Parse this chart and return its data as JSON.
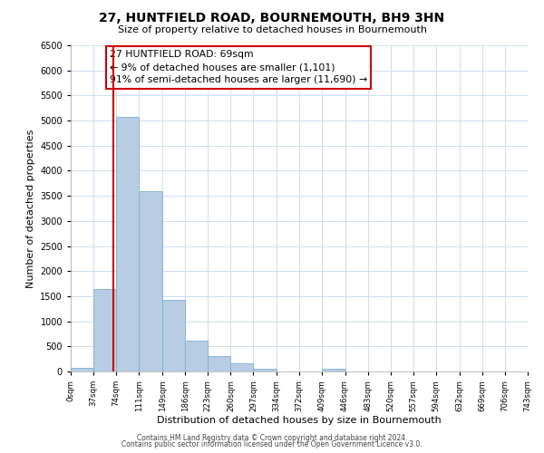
{
  "title": "27, HUNTFIELD ROAD, BOURNEMOUTH, BH9 3HN",
  "subtitle": "Size of property relative to detached houses in Bournemouth",
  "xlabel": "Distribution of detached houses by size in Bournemouth",
  "ylabel": "Number of detached properties",
  "bar_edges": [
    0,
    37,
    74,
    111,
    149,
    186,
    223,
    260,
    297,
    334,
    372,
    409,
    446,
    483,
    520,
    557,
    594,
    632,
    669,
    706,
    743
  ],
  "bar_heights": [
    70,
    1650,
    5080,
    3600,
    1430,
    620,
    305,
    155,
    60,
    0,
    0,
    55,
    0,
    0,
    0,
    0,
    0,
    0,
    0,
    0
  ],
  "bar_color": "#b8cce4",
  "bar_edgecolor": "#7bafd4",
  "ylim": [
    0,
    6500
  ],
  "yticks": [
    0,
    500,
    1000,
    1500,
    2000,
    2500,
    3000,
    3500,
    4000,
    4500,
    5000,
    5500,
    6000,
    6500
  ],
  "property_line_x": 69,
  "property_line_color": "#cc0000",
  "annotation_title": "27 HUNTFIELD ROAD: 69sqm",
  "annotation_line1": "← 9% of detached houses are smaller (1,101)",
  "annotation_line2": "91% of semi-detached houses are larger (11,690) →",
  "annotation_box_color": "#cc0000",
  "footer_line1": "Contains HM Land Registry data © Crown copyright and database right 2024.",
  "footer_line2": "Contains public sector information licensed under the Open Government Licence v3.0.",
  "background_color": "#ffffff",
  "grid_color": "#ccddee",
  "xtick_labels": [
    "0sqm",
    "37sqm",
    "74sqm",
    "111sqm",
    "149sqm",
    "186sqm",
    "223sqm",
    "260sqm",
    "297sqm",
    "334sqm",
    "372sqm",
    "409sqm",
    "446sqm",
    "483sqm",
    "520sqm",
    "557sqm",
    "594sqm",
    "632sqm",
    "669sqm",
    "706sqm",
    "743sqm"
  ]
}
